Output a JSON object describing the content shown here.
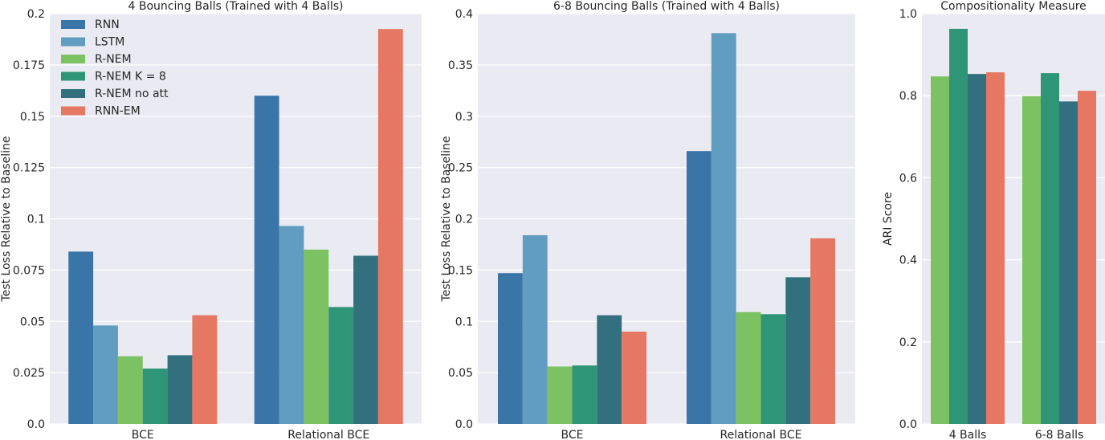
{
  "chart_data": [
    {
      "type": "bar",
      "title": "4 Bouncing Balls (Trained with 4 Balls)",
      "xlabel": "",
      "ylabel": "Test Loss Relative to Baseline",
      "ylim": [
        0,
        0.2
      ],
      "yticks": [
        "0.0",
        "0.025",
        "0.05",
        "0.075",
        "0.1",
        "0.125",
        "0.15",
        "0.175",
        "0.2"
      ],
      "categories": [
        "BCE",
        "Relational BCE"
      ],
      "series": [
        {
          "name": "RNN",
          "color": "#3a75a8",
          "values": [
            0.084,
            0.16
          ]
        },
        {
          "name": "LSTM",
          "color": "#619cc1",
          "values": [
            0.048,
            0.0965
          ]
        },
        {
          "name": "R-NEM",
          "color": "#7cc262",
          "values": [
            0.033,
            0.085
          ]
        },
        {
          "name": "R-NEM K = 8",
          "color": "#2f9577",
          "values": [
            0.027,
            0.057
          ]
        },
        {
          "name": "R-NEM no att",
          "color": "#33707f",
          "values": [
            0.0335,
            0.082
          ]
        },
        {
          "name": "RNN-EM",
          "color": "#e67762",
          "values": [
            0.053,
            0.1925
          ]
        }
      ],
      "legend": {
        "location": "top-left",
        "entries": [
          {
            "label": "RNN",
            "color": "#3a75a8"
          },
          {
            "label": "LSTM",
            "color": "#619cc1"
          },
          {
            "label": "R-NEM",
            "color": "#7cc262"
          },
          {
            "label": "R-NEM K = 8",
            "color": "#2f9577"
          },
          {
            "label": "R-NEM no att",
            "color": "#33707f"
          },
          {
            "label": "RNN-EM",
            "color": "#e67762"
          }
        ]
      }
    },
    {
      "type": "bar",
      "title": "6-8 Bouncing Balls (Trained with 4 Balls)",
      "xlabel": "",
      "ylabel": "Test Loss Relative to Baseline",
      "ylim": [
        0,
        0.4
      ],
      "yticks": [
        "0.0",
        "0.05",
        "0.1",
        "0.15",
        "0.2",
        "0.25",
        "0.3",
        "0.35",
        "0.4"
      ],
      "categories": [
        "BCE",
        "Relational BCE"
      ],
      "series": [
        {
          "name": "RNN",
          "color": "#3a75a8",
          "values": [
            0.147,
            0.266
          ]
        },
        {
          "name": "LSTM",
          "color": "#619cc1",
          "values": [
            0.184,
            0.381
          ]
        },
        {
          "name": "R-NEM",
          "color": "#7cc262",
          "values": [
            0.056,
            0.109
          ]
        },
        {
          "name": "R-NEM K = 8",
          "color": "#2f9577",
          "values": [
            0.057,
            0.107
          ]
        },
        {
          "name": "R-NEM no att",
          "color": "#33707f",
          "values": [
            0.106,
            0.143
          ]
        },
        {
          "name": "RNN-EM",
          "color": "#e67762",
          "values": [
            0.09,
            0.181
          ]
        }
      ]
    },
    {
      "type": "bar",
      "title": "Compositionality Measure",
      "xlabel": "",
      "ylabel": "ARI Score",
      "ylim": [
        0,
        1.0
      ],
      "yticks": [
        "0.0",
        "0.2",
        "0.4",
        "0.6",
        "0.8",
        "1.0"
      ],
      "categories": [
        "4 Balls",
        "6-8 Balls"
      ],
      "series": [
        {
          "name": "R-NEM",
          "color": "#7cc262",
          "values": [
            0.847,
            0.799
          ]
        },
        {
          "name": "R-NEM K = 8",
          "color": "#2f9577",
          "values": [
            0.963,
            0.855
          ]
        },
        {
          "name": "R-NEM no att",
          "color": "#33707f",
          "values": [
            0.853,
            0.786
          ]
        },
        {
          "name": "RNN-EM",
          "color": "#e67762",
          "values": [
            0.857,
            0.812
          ]
        }
      ]
    }
  ]
}
